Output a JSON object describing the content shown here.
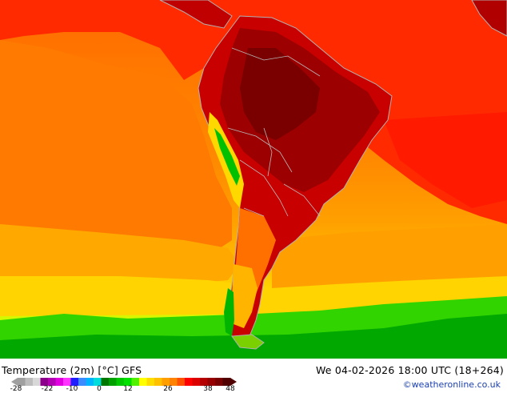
{
  "header": {
    "title": "Temperature (2m) [°C] GFS",
    "datetime": "We 04-02-2026 18:00 UTC (18+264)",
    "credit": "©weatheronline.co.uk"
  },
  "legend": {
    "ticks": [
      "-28",
      "-22",
      "-10",
      "0",
      "12",
      "26",
      "38",
      "48"
    ],
    "colors": [
      "#a0a0a0",
      "#bdbdbd",
      "#d8d8d8",
      "#8c008c",
      "#b400b4",
      "#e000e0",
      "#ff33ff",
      "#1e1eff",
      "#3c8cff",
      "#00b4ff",
      "#00dcdc",
      "#007800",
      "#00a000",
      "#00c800",
      "#00e100",
      "#50f000",
      "#ffff00",
      "#ffdc00",
      "#ffc000",
      "#ffa000",
      "#ff8200",
      "#ff5000",
      "#ff0000",
      "#dc0000",
      "#b40000",
      "#960000",
      "#780000",
      "#500000"
    ]
  },
  "map": {
    "region": "South America",
    "colors": {
      "ocean_warm": "#ff8200",
      "ocean_hot": "#ff2000",
      "land_very_hot": "#a80000",
      "land_hot": "#cc0000",
      "cool": "#ffc800",
      "mild": "#ffe000",
      "green": "#00c800",
      "dark_green": "#00a000"
    }
  }
}
